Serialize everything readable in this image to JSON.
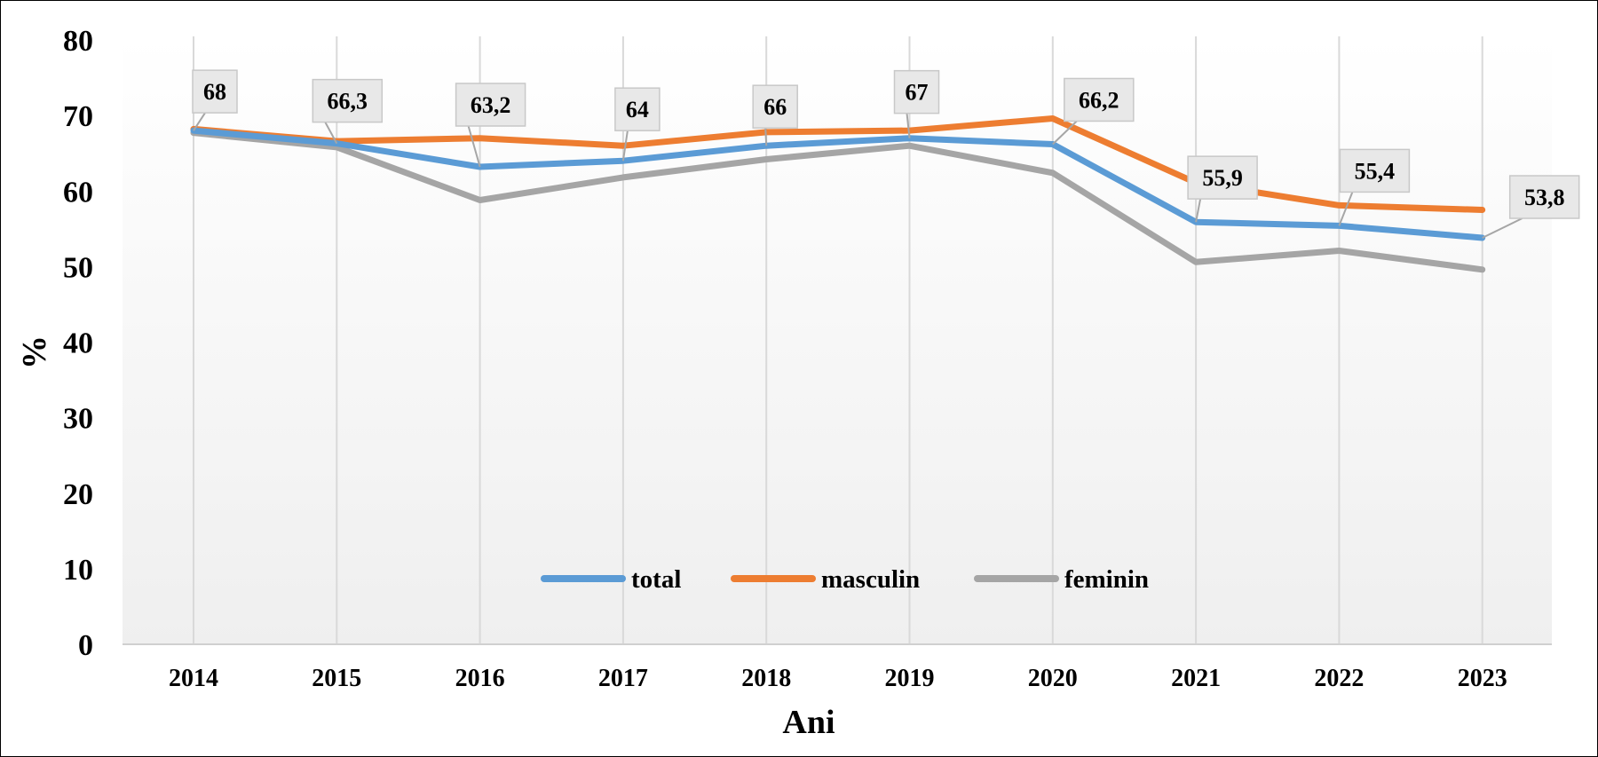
{
  "chart_data": {
    "type": "line",
    "categories": [
      "2014",
      "2015",
      "2016",
      "2017",
      "2018",
      "2019",
      "2020",
      "2021",
      "2022",
      "2023"
    ],
    "series": [
      {
        "name": "total",
        "color": "#5B9BD5",
        "values": [
          68.0,
          66.3,
          63.2,
          64.0,
          66.0,
          67.0,
          66.2,
          55.9,
          55.4,
          53.8
        ]
      },
      {
        "name": "masculin",
        "color": "#ED7D31",
        "values": [
          68.2,
          66.6,
          67.0,
          66.0,
          67.8,
          68.0,
          69.6,
          61.1,
          58.1,
          57.5
        ]
      },
      {
        "name": "feminin",
        "color": "#A5A5A5",
        "values": [
          67.7,
          65.8,
          58.8,
          61.8,
          64.2,
          66.0,
          62.4,
          50.6,
          52.1,
          49.6
        ]
      }
    ],
    "data_labels": {
      "series": "total",
      "labels": [
        "68",
        "66,3",
        "63,2",
        "64",
        "66",
        "67",
        "66,2",
        "55,9",
        "55,4",
        "53,8"
      ]
    },
    "y_ticks": [
      "0",
      "10",
      "20",
      "30",
      "40",
      "50",
      "60",
      "70",
      "80"
    ],
    "ylim": [
      0,
      80
    ],
    "xlabel": "Ani",
    "ylabel": "%",
    "grid": "vertical",
    "legend_position": "bottom-inside"
  }
}
